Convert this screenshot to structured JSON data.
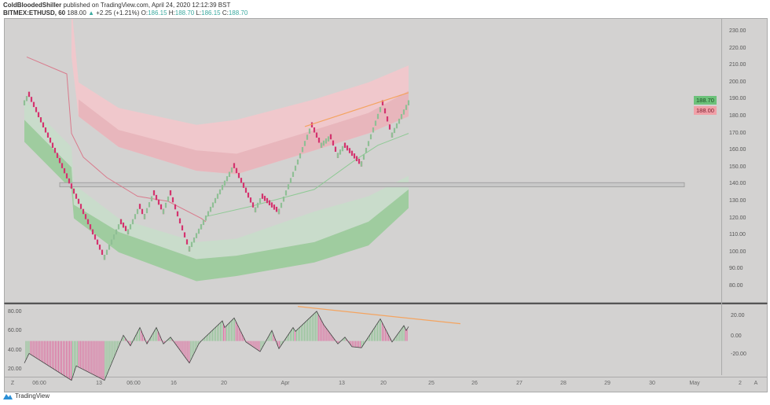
{
  "header": {
    "author": "ColdBloodedShiller",
    "published": " published on TradingView.com, April 24, 2020 12:12:39 BST",
    "symbol": "BITMEX:ETHUSD, 60",
    "last": "188.00",
    "arrow": "▲",
    "change": "+2.25 (+1.21%)",
    "o_label": "O:",
    "o": "186.15",
    "h_label": "H:",
    "h": "188.70",
    "l_label": "L:",
    "l": "186.15",
    "c_label": "C:",
    "c": "188.70"
  },
  "footer": {
    "brand": "TradingView"
  },
  "colors": {
    "up": "#8fbf95",
    "down": "#d4336e",
    "bg": "#d3d2d1",
    "trend": "#f4a460",
    "tag_up": "#6cc27a",
    "tag_down": "#f0a0a8"
  },
  "chart_data": [
    {
      "type": "renko",
      "price_axis": {
        "ticks": [
          "230.00",
          "220.00",
          "210.00",
          "200.00",
          "190.00",
          "180.00",
          "170.00",
          "160.00",
          "150.00",
          "140.00",
          "130.00",
          "120.00",
          "110.00",
          "100.00",
          "90.00",
          "80.00"
        ],
        "range": [
          80,
          230
        ]
      },
      "price_tags": {
        "high": "188.70",
        "last": "188.00"
      },
      "brick_size": 3,
      "pivots": [
        [
          1,
          188
        ],
        [
          3,
          193
        ],
        [
          35,
          97
        ],
        [
          42,
          118
        ],
        [
          45,
          112
        ],
        [
          50,
          127
        ],
        [
          52,
          121
        ],
        [
          56,
          135
        ],
        [
          60,
          124
        ],
        [
          63,
          135
        ],
        [
          71,
          102
        ],
        [
          76,
          115
        ],
        [
          90,
          151
        ],
        [
          99,
          125
        ],
        [
          102,
          133
        ],
        [
          109,
          124
        ],
        [
          123,
          175
        ],
        [
          127,
          163
        ],
        [
          131,
          168
        ],
        [
          134,
          157
        ],
        [
          137,
          163
        ],
        [
          144,
          152
        ],
        [
          153,
          188
        ],
        [
          157,
          169
        ],
        [
          164,
          188
        ]
      ],
      "bands": [
        {
          "name": "upper-outer",
          "color": "#f0c8cc",
          "x": [
            21,
            24,
            41,
            74,
            91,
            124,
            147,
            164
          ],
          "top": [
            245,
            200,
            185,
            175,
            178,
            190,
            200,
            210
          ],
          "bottom": [
            215,
            180,
            162,
            148,
            146,
            160,
            170,
            180
          ]
        },
        {
          "name": "upper-inner",
          "color": "#e8b6bc",
          "x": [
            24,
            41,
            74,
            91,
            124,
            147,
            164
          ],
          "top": [
            190,
            172,
            160,
            158,
            172,
            182,
            195
          ],
          "bottom": [
            180,
            162,
            148,
            146,
            160,
            170,
            180
          ]
        },
        {
          "name": "lower-outer",
          "color": "#c9dccb",
          "x": [
            1,
            21,
            22,
            41,
            74,
            91,
            124,
            147,
            164
          ],
          "top": [
            190,
            162,
            140,
            120,
            106,
            108,
            124,
            133,
            145
          ],
          "bottom": [
            178,
            150,
            128,
            112,
            96,
            98,
            106,
            118,
            137
          ]
        },
        {
          "name": "lower-inner",
          "color": "#9fcc9f",
          "x": [
            1,
            21,
            22,
            41,
            74,
            91,
            124,
            147,
            164
          ],
          "top": [
            178,
            150,
            128,
            112,
            96,
            98,
            106,
            118,
            137
          ],
          "bottom": [
            165,
            137,
            120,
            100,
            83,
            86,
            94,
            104,
            126
          ]
        }
      ],
      "lines": [
        {
          "color": "#d97a8c",
          "points": [
            [
              2,
              215
            ],
            [
              19,
              205
            ],
            [
              21,
              170
            ],
            [
              26,
              156
            ],
            [
              36,
              144
            ],
            [
              49,
              133
            ],
            [
              62,
              130
            ],
            [
              76,
              120
            ],
            [
              78,
              118
            ]
          ]
        },
        {
          "color": "#8fc995",
          "points": [
            [
              78,
              121
            ],
            [
              97,
              127
            ],
            [
              124,
              137
            ],
            [
              141,
              154
            ],
            [
              151,
              163
            ],
            [
              164,
              170
            ]
          ]
        }
      ],
      "zone": {
        "from": 16,
        "to": 281,
        "low": 138.5,
        "high": 141
      },
      "trendline": [
        [
          120,
          174
        ],
        [
          164,
          194
        ]
      ]
    },
    {
      "type": "oscillator",
      "left_axis": {
        "ticks": [
          "80.00",
          "60.00",
          "40.00",
          "20.00"
        ]
      },
      "right_axis": {
        "ticks": [
          "20.00",
          "0.00",
          "-20.00"
        ]
      },
      "baseline": 50,
      "line": [
        [
          1,
          27
        ],
        [
          3,
          37
        ],
        [
          21,
          9
        ],
        [
          23,
          24
        ],
        [
          35,
          9
        ],
        [
          43,
          56
        ],
        [
          46,
          45
        ],
        [
          50,
          64
        ],
        [
          53,
          47
        ],
        [
          57,
          64
        ],
        [
          60,
          47
        ],
        [
          63,
          54
        ],
        [
          71,
          27
        ],
        [
          75,
          47
        ],
        [
          76,
          50
        ],
        [
          85,
          71
        ],
        [
          86,
          64
        ],
        [
          90,
          74
        ],
        [
          95,
          49
        ],
        [
          101,
          39
        ],
        [
          106,
          61
        ],
        [
          109,
          42
        ],
        [
          115,
          64
        ],
        [
          116,
          60
        ],
        [
          125,
          81
        ],
        [
          128,
          67
        ],
        [
          134,
          47
        ],
        [
          137,
          54
        ],
        [
          140,
          44
        ],
        [
          144,
          43
        ],
        [
          152,
          73
        ],
        [
          157,
          49
        ],
        [
          162,
          66
        ],
        [
          163,
          61
        ],
        [
          164,
          65
        ]
      ],
      "trendline": [
        [
          117,
          86
        ],
        [
          186,
          68
        ]
      ]
    }
  ],
  "time_axis": {
    "labels": [
      "Z",
      "06:00",
      "13",
      "06:00",
      "16",
      "20",
      "Apr",
      "13",
      "20",
      "25",
      "26",
      "27",
      "28",
      "29",
      "30",
      "May",
      "2",
      "A"
    ]
  }
}
